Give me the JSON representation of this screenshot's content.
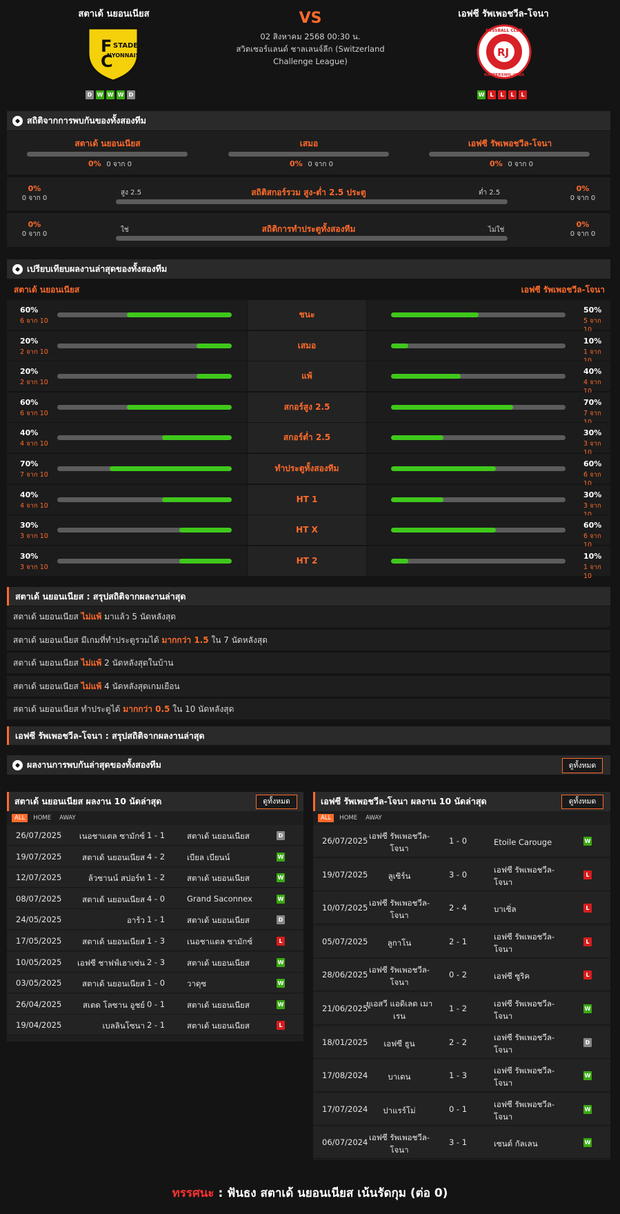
{
  "header": {
    "home_name": "สตาเด้ นยอนเนียส",
    "away_name": "เอฟซี รัพเพอชวีล-โจนา",
    "vs": "VS",
    "date": "02 สิงหาคม 2568 00:30 น.",
    "league1": "สวิตเซอร์แลนด์ ชาลเลนจ์ลีก (Switzerland",
    "league2": "Challenge League)",
    "home_logo_text": "FC STADE NYONNAIS",
    "away_logo_text": "FUSSBALL CLUB RAPPERSWIL-JONA",
    "home_form": [
      "D",
      "W",
      "W",
      "W",
      "D"
    ],
    "away_form": [
      "W",
      "L",
      "L",
      "L",
      "L"
    ]
  },
  "h2h": {
    "title": "สถิติจากการพบกันของทั้งสองทีม",
    "home": "สตาเด้ นยอนเนียส",
    "draw": "เสมอ",
    "away": "เอฟซี รัพเพอชวีล-โจนา",
    "pct": "0%",
    "count": "0 จาก 0",
    "ou_title": "สถิติสกอร์รวม สูง-ต่ำ 2.5 ประตู",
    "ou_left": "สูง 2.5",
    "ou_right": "ต่ำ 2.5",
    "btts_title": "สถิติการทำประตูทั้งสองทีม",
    "btts_left": "ใช่",
    "btts_right": "ไม่ใช่"
  },
  "compare": {
    "title": "เปรียบเทียบผลงานล่าสุดของทั้งสองทีม",
    "home": "สตาเด้ นยอนเนียส",
    "away": "เอฟซี รัพเพอชวีล-โจนา",
    "rows": [
      {
        "label": "ชนะ",
        "hp": "60%",
        "hc": "6 จาก 10",
        "hv": 0.6,
        "ap": "50%",
        "ac": "5 จาก 10",
        "av": 0.5
      },
      {
        "label": "เสมอ",
        "hp": "20%",
        "hc": "2 จาก 10",
        "hv": 0.2,
        "ap": "10%",
        "ac": "1 จาก 10",
        "av": 0.1
      },
      {
        "label": "แพ้",
        "hp": "20%",
        "hc": "2 จาก 10",
        "hv": 0.2,
        "ap": "40%",
        "ac": "4 จาก 10",
        "av": 0.4
      },
      {
        "label": "สกอร์สูง 2.5",
        "hp": "60%",
        "hc": "6 จาก 10",
        "hv": 0.6,
        "ap": "70%",
        "ac": "7 จาก 10",
        "av": 0.7
      },
      {
        "label": "สกอร์ต่ำ 2.5",
        "hp": "40%",
        "hc": "4 จาก 10",
        "hv": 0.4,
        "ap": "30%",
        "ac": "3 จาก 10",
        "av": 0.3
      },
      {
        "label": "ทำประตูทั้งสองทีม",
        "hp": "70%",
        "hc": "7 จาก 10",
        "hv": 0.7,
        "ap": "60%",
        "ac": "6 จาก 10",
        "av": 0.6
      },
      {
        "label": "HT 1",
        "hp": "40%",
        "hc": "4 จาก 10",
        "hv": 0.4,
        "ap": "30%",
        "ac": "3 จาก 10",
        "av": 0.3
      },
      {
        "label": "HT X",
        "hp": "30%",
        "hc": "3 จาก 10",
        "hv": 0.3,
        "ap": "60%",
        "ac": "6 จาก 10",
        "av": 0.6
      },
      {
        "label": "HT 2",
        "hp": "30%",
        "hc": "3 จาก 10",
        "hv": 0.3,
        "ap": "10%",
        "ac": "1 จาก 10",
        "av": 0.1
      }
    ]
  },
  "home_summary": {
    "title": "สตาเด้ นยอนเนียส : สรุปสถิติจากผลงานล่าสุด",
    "lines": [
      {
        "a": "สตาเด้ นยอนเนียส",
        "h": "ไม่แพ้",
        "b": "มาแล้ว 5 นัดหลังสุด"
      },
      {
        "a": "สตาเด้ นยอนเนียส มีเกมที่ทำประตูรวมได้",
        "h": "มากกว่า 1.5",
        "b": "ใน 7 นัดหลังสุด"
      },
      {
        "a": "สตาเด้ นยอนเนียส",
        "h": "ไม่แพ้",
        "b": "2 นัดหลังสุดในบ้าน"
      },
      {
        "a": "สตาเด้ นยอนเนียส",
        "h": "ไม่แพ้",
        "b": "4 นัดหลังสุดเกมเยือน"
      },
      {
        "a": "สตาเด้ นยอนเนียส ทำประตูได้",
        "h": "มากกว่า 0.5",
        "b": "ใน 10 นัดหลังสุด"
      }
    ]
  },
  "away_summary": {
    "title": "เอฟซี รัพเพอชวีล-โจนา : สรุปสถิติจากผลงานล่าสุด"
  },
  "recent_h2h": {
    "title": "ผลงานการพบกันล่าสุดของทั้งสองทีม",
    "button": "ดูทั้งหมด"
  },
  "home_last10": {
    "title": "สตาเด้ นยอนเนียส ผลงาน 10 นัดล่าสุด",
    "button": "ดูทั้งหมด",
    "tabs": [
      "ALL",
      "HOME",
      "AWAY"
    ],
    "rows": [
      {
        "d": "26/07/2025",
        "h": "เนอชาแตล ซามักซ์",
        "s": "1 - 1",
        "a": "สตาเด้ นยอนเนียส",
        "r": "D"
      },
      {
        "d": "19/07/2025",
        "h": "สตาเด้ นยอนเนียส",
        "s": "4 - 2",
        "a": "เบียล เบียนน์",
        "r": "W"
      },
      {
        "d": "12/07/2025",
        "h": "ล้วซานน์ สปอร์ท",
        "s": "1 - 2",
        "a": "สตาเด้ นยอนเนียส",
        "r": "W"
      },
      {
        "d": "08/07/2025",
        "h": "สตาเด้ นยอนเนียส",
        "s": "4 - 0",
        "a": "Grand Saconnex",
        "r": "W"
      },
      {
        "d": "24/05/2025",
        "h": "อาร้ว",
        "s": "1 - 1",
        "a": "สตาเด้ นยอนเนียส",
        "r": "D"
      },
      {
        "d": "17/05/2025",
        "h": "สตาเด้ นยอนเนียส",
        "s": "1 - 3",
        "a": "เนอชาแตล ซามักซ์",
        "r": "L"
      },
      {
        "d": "10/05/2025",
        "h": "เอฟซี ชาฟฟ์เฮาเซ่น",
        "s": "2 - 3",
        "a": "สตาเด้ นยอนเนียส",
        "r": "W"
      },
      {
        "d": "03/05/2025",
        "h": "สตาเด้ นยอนเนียส",
        "s": "1 - 0",
        "a": "วาดุซ",
        "r": "W"
      },
      {
        "d": "26/04/2025",
        "h": "สเตด โลซาน อูชย์",
        "s": "0 - 1",
        "a": "สตาเด้ นยอนเนียส",
        "r": "W"
      },
      {
        "d": "19/04/2025",
        "h": "เบลลินโซนา",
        "s": "2 - 1",
        "a": "สตาเด้ นยอนเนียส",
        "r": "L"
      }
    ]
  },
  "away_last10": {
    "title": "เอฟซี รัพเพอชวีล-โจนา ผลงาน 10 นัดล่าสุด",
    "button": "ดูทั้งหมด",
    "tabs": [
      "ALL",
      "HOME",
      "AWAY"
    ],
    "rows": [
      {
        "d": "26/07/2025",
        "h1": "เอฟซี รัพเพอชวีล-",
        "h2": "โจนา",
        "s": "1 - 0",
        "a1": "Etoile Carouge",
        "a2": "",
        "r": "W"
      },
      {
        "d": "19/07/2025",
        "h1": "ลูเซิร์น",
        "h2": "",
        "s": "3 - 0",
        "a1": "เอฟซี รัพเพอชวีล-",
        "a2": "โจนา",
        "r": "L"
      },
      {
        "d": "10/07/2025",
        "h1": "เอฟซี รัพเพอชวีล-",
        "h2": "โจนา",
        "s": "2 - 4",
        "a1": "บาเซิ่ล",
        "a2": "",
        "r": "L"
      },
      {
        "d": "05/07/2025",
        "h1": "ลูกาโน",
        "h2": "",
        "s": "2 - 1",
        "a1": "เอฟซี รัพเพอชวีล-",
        "a2": "โจนา",
        "r": "L"
      },
      {
        "d": "28/06/2025",
        "h1": "เอฟซี รัพเพอชวีล-",
        "h2": "โจนา",
        "s": "0 - 2",
        "a1": "เอฟซี ซูริค",
        "a2": "",
        "r": "L"
      },
      {
        "d": "21/06/2025",
        "h1": "ยูเอสวี แอดิเลด เมา",
        "h2": "เรน",
        "s": "1 - 2",
        "a1": "เอฟซี รัพเพอชวีล-",
        "a2": "โจนา",
        "r": "W"
      },
      {
        "d": "18/01/2025",
        "h1": "เอฟซี ธูน",
        "h2": "",
        "s": "2 - 2",
        "a1": "เอฟซี รัพเพอชวีล-",
        "a2": "โจนา",
        "r": "D"
      },
      {
        "d": "17/08/2024",
        "h1": "บาเดน",
        "h2": "",
        "s": "1 - 3",
        "a1": "เอฟซี รัพเพอชวีล-",
        "a2": "โจนา",
        "r": "W"
      },
      {
        "d": "17/07/2024",
        "h1": "ปาแรร์โม่",
        "h2": "",
        "s": "0 - 1",
        "a1": "เอฟซี รัพเพอชวีล-",
        "a2": "โจนา",
        "r": "W"
      },
      {
        "d": "06/07/2024",
        "h1": "เอฟซี รัพเพอชวีล-",
        "h2": "โจนา",
        "s": "3 - 1",
        "a1": "เซนต์ กัลเลน",
        "a2": "",
        "r": "W"
      }
    ]
  },
  "prediction": {
    "label": "ทรรศนะ",
    "sep": " : ",
    "text": "ฟันธง สตาเด้ นยอนเนียส เน้นรัดกุม (ต่อ 0)"
  },
  "colors": {
    "accent": "#ff6b2b",
    "win": "#3aa913",
    "draw": "#888888",
    "loss": "#d61d1d",
    "bar_fill": "#3fc81b"
  }
}
